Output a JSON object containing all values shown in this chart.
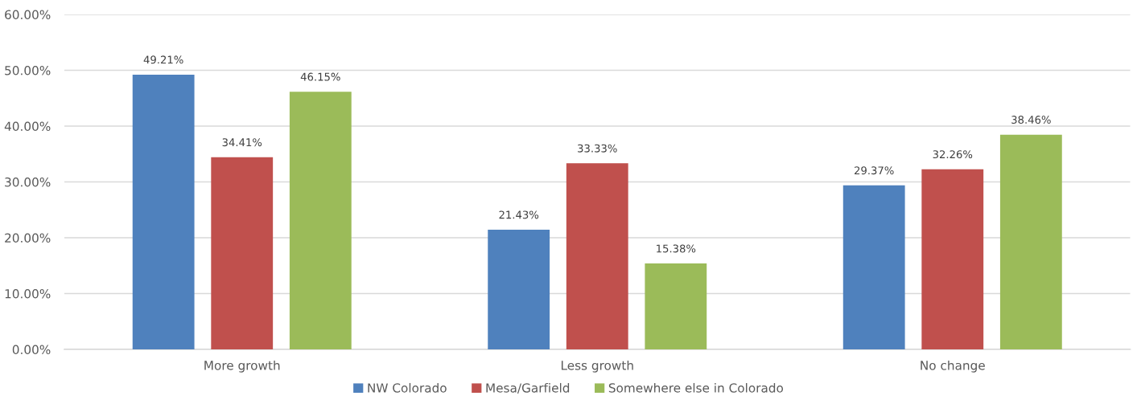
{
  "chart_data": {
    "type": "bar",
    "categories": [
      "More growth",
      "Less growth",
      "No change"
    ],
    "series": [
      {
        "name": "NW Colorado",
        "color": "#4f81bd",
        "values": [
          49.21,
          21.43,
          29.37
        ],
        "value_labels": [
          "49.21%",
          "21.43%",
          "29.37%"
        ]
      },
      {
        "name": "Mesa/Garfield",
        "color": "#c0504d",
        "values": [
          34.41,
          33.33,
          32.26
        ],
        "value_labels": [
          "34.41%",
          "33.33%",
          "32.26%"
        ]
      },
      {
        "name": "Somewhere else in Colorado",
        "color": "#9bbb59",
        "values": [
          46.15,
          15.38,
          38.46
        ],
        "value_labels": [
          "46.15%",
          "15.38%",
          "38.46%"
        ]
      }
    ],
    "ylim": [
      0,
      60
    ],
    "yticks": [
      {
        "value": 0,
        "label": "0.00%"
      },
      {
        "value": 10,
        "label": "10.00%"
      },
      {
        "value": 20,
        "label": "20.00%"
      },
      {
        "value": 30,
        "label": "30.00%"
      },
      {
        "value": 40,
        "label": "40.00%"
      },
      {
        "value": 50,
        "label": "50.00%"
      },
      {
        "value": 60,
        "label": "60.00%"
      }
    ],
    "grid": "y",
    "legend": "bottom"
  }
}
